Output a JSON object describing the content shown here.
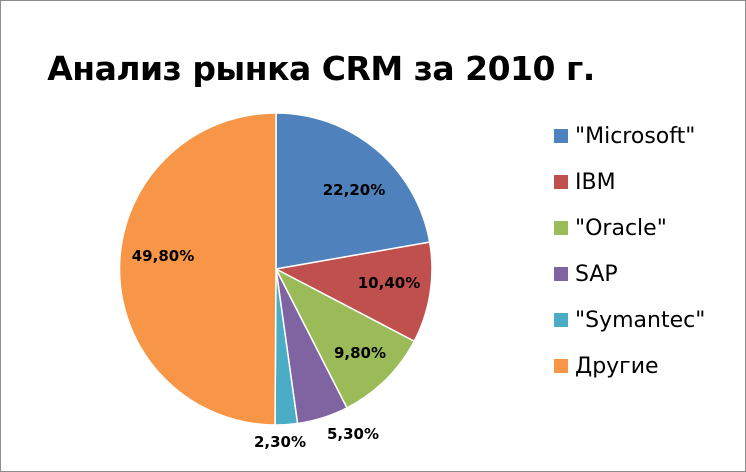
{
  "chart_data": {
    "type": "pie",
    "title": "Анализ рынка CRM за 2010 г.",
    "categories": [
      "\"Microsoft\"",
      "IBM",
      "\"Oracle\"",
      "SAP",
      "\"Symantec\"",
      "Другие"
    ],
    "values": [
      22.2,
      10.4,
      9.8,
      5.3,
      2.3,
      49.8
    ],
    "data_labels": [
      "22,20%",
      "10,40%",
      "9,80%",
      "5,30%",
      "2,30%",
      "49,80%"
    ],
    "colors": [
      "#4F81BD",
      "#C0504D",
      "#9BBB59",
      "#8064A2",
      "#4BACC6",
      "#F79646"
    ],
    "legend_position": "right"
  }
}
